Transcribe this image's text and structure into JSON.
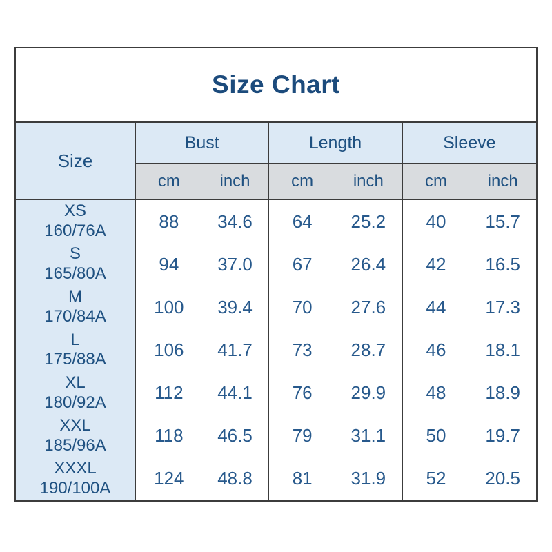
{
  "title": "Size Chart",
  "colors": {
    "text_navy": "#1f5181",
    "title_navy": "#1c4b7c",
    "value_navy": "#27598c",
    "header_bg": "#dce9f5",
    "unit_bg": "#d9dcdf",
    "border": "#3c3c3c",
    "page_bg": "#ffffff"
  },
  "table": {
    "size_header": "Size",
    "groups": [
      {
        "label": "Bust"
      },
      {
        "label": "Length"
      },
      {
        "label": "Sleeve"
      }
    ],
    "units": {
      "cm": "cm",
      "inch": "inch"
    },
    "rows": [
      {
        "size": "XS",
        "spec": "160/76A",
        "bust_cm": "88",
        "bust_inch": "34.6",
        "len_cm": "64",
        "len_inch": "25.2",
        "slv_cm": "40",
        "slv_inch": "15.7"
      },
      {
        "size": "S",
        "spec": "165/80A",
        "bust_cm": "94",
        "bust_inch": "37.0",
        "len_cm": "67",
        "len_inch": "26.4",
        "slv_cm": "42",
        "slv_inch": "16.5"
      },
      {
        "size": "M",
        "spec": "170/84A",
        "bust_cm": "100",
        "bust_inch": "39.4",
        "len_cm": "70",
        "len_inch": "27.6",
        "slv_cm": "44",
        "slv_inch": "17.3"
      },
      {
        "size": "L",
        "spec": "175/88A",
        "bust_cm": "106",
        "bust_inch": "41.7",
        "len_cm": "73",
        "len_inch": "28.7",
        "slv_cm": "46",
        "slv_inch": "18.1"
      },
      {
        "size": "XL",
        "spec": "180/92A",
        "bust_cm": "112",
        "bust_inch": "44.1",
        "len_cm": "76",
        "len_inch": "29.9",
        "slv_cm": "48",
        "slv_inch": "18.9"
      },
      {
        "size": "XXL",
        "spec": "185/96A",
        "bust_cm": "118",
        "bust_inch": "46.5",
        "len_cm": "79",
        "len_inch": "31.1",
        "slv_cm": "50",
        "slv_inch": "19.7"
      },
      {
        "size": "XXXL",
        "spec": "190/100A",
        "bust_cm": "124",
        "bust_inch": "48.8",
        "len_cm": "81",
        "len_inch": "31.9",
        "slv_cm": "52",
        "slv_inch": "20.5"
      }
    ]
  },
  "chart_data": {
    "type": "table",
    "title": "Size Chart",
    "column_groups": [
      "Size",
      "Bust",
      "Length",
      "Sleeve"
    ],
    "units": [
      "cm",
      "inch"
    ],
    "rows": [
      {
        "size": "XS",
        "size_spec": "160/76A",
        "bust_cm": 88,
        "bust_inch": 34.6,
        "length_cm": 64,
        "length_inch": 25.2,
        "sleeve_cm": 40,
        "sleeve_inch": 15.7
      },
      {
        "size": "S",
        "size_spec": "165/80A",
        "bust_cm": 94,
        "bust_inch": 37.0,
        "length_cm": 67,
        "length_inch": 26.4,
        "sleeve_cm": 42,
        "sleeve_inch": 16.5
      },
      {
        "size": "M",
        "size_spec": "170/84A",
        "bust_cm": 100,
        "bust_inch": 39.4,
        "length_cm": 70,
        "length_inch": 27.6,
        "sleeve_cm": 44,
        "sleeve_inch": 17.3
      },
      {
        "size": "L",
        "size_spec": "175/88A",
        "bust_cm": 106,
        "bust_inch": 41.7,
        "length_cm": 73,
        "length_inch": 28.7,
        "sleeve_cm": 46,
        "sleeve_inch": 18.1
      },
      {
        "size": "XL",
        "size_spec": "180/92A",
        "bust_cm": 112,
        "bust_inch": 44.1,
        "length_cm": 76,
        "length_inch": 29.9,
        "sleeve_cm": 48,
        "sleeve_inch": 18.9
      },
      {
        "size": "XXL",
        "size_spec": "185/96A",
        "bust_cm": 118,
        "bust_inch": 46.5,
        "length_cm": 79,
        "length_inch": 31.1,
        "sleeve_cm": 50,
        "sleeve_inch": 19.7
      },
      {
        "size": "XXXL",
        "size_spec": "190/100A",
        "bust_cm": 124,
        "bust_inch": 48.8,
        "length_cm": 81,
        "length_inch": 31.9,
        "sleeve_cm": 52,
        "sleeve_inch": 20.5
      }
    ]
  }
}
